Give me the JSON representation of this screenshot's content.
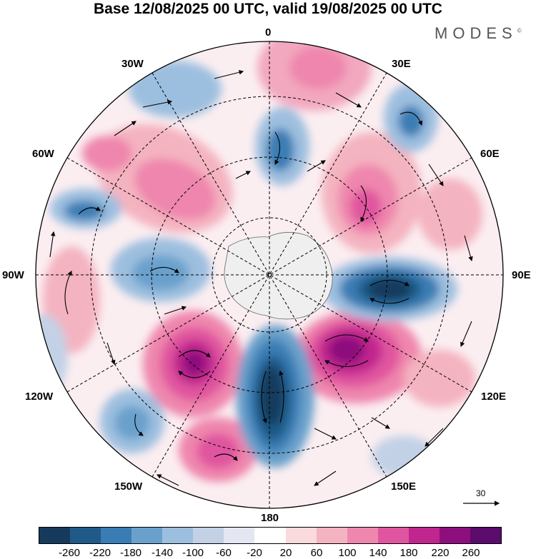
{
  "title": "Base 12/08/2025 00 UTC, valid 19/08/2025 00 UTC",
  "brand": "MODES",
  "brand_mark": "©",
  "longitude_labels": [
    "0",
    "30E",
    "60E",
    "90E",
    "120E",
    "150E",
    "180",
    "150W",
    "120W",
    "90W",
    "60W",
    "30W"
  ],
  "reference_vector": {
    "label": "30"
  },
  "colorbar": {
    "colors": [
      "#163a5c",
      "#1f5a88",
      "#3a7db4",
      "#6aa1cc",
      "#9dbfdf",
      "#c3d1e6",
      "#e4e6f1",
      "#ffffff",
      "#f9dadd",
      "#f4b3c0",
      "#ef86ad",
      "#e0559f",
      "#c1258e",
      "#8d0f7d",
      "#5a0b6c"
    ],
    "tick_labels": [
      "-260",
      "-220",
      "-180",
      "-140",
      "-100",
      "-60",
      "-20",
      "20",
      "60",
      "100",
      "140",
      "180",
      "220",
      "260"
    ]
  }
}
